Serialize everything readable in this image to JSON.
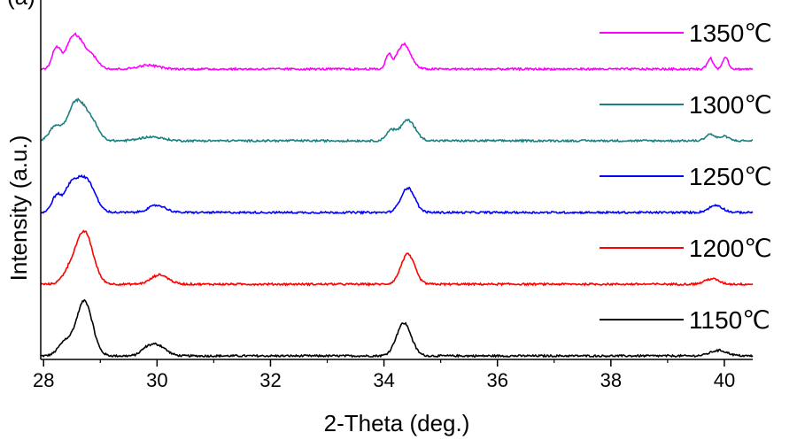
{
  "chart_data": {
    "type": "line",
    "panel_label": "(a)",
    "xlabel": "2-Theta (deg.)",
    "ylabel": "Intensity (a.u.)",
    "xlim": [
      27.95,
      40.5
    ],
    "xticks": [
      28,
      30,
      32,
      34,
      36,
      38,
      40
    ],
    "x_tick_labels": [
      "28",
      "30",
      "32",
      "34",
      "36",
      "38",
      "40"
    ],
    "y_ticks_shown": false,
    "grid": false,
    "legend_placement": "right, one label beside each trace",
    "series": [
      {
        "name": "1150℃",
        "color": "#000000",
        "offset": 0,
        "peaks": [
          [
            28.72,
            1.0,
            0.14
          ],
          [
            28.38,
            0.25,
            0.12
          ],
          [
            30.0,
            0.2,
            0.15
          ],
          [
            29.8,
            0.08,
            0.1
          ],
          [
            34.35,
            0.6,
            0.13
          ],
          [
            39.9,
            0.1,
            0.15
          ]
        ]
      },
      {
        "name": "1200℃",
        "color": "#ff0000",
        "offset": 1,
        "peaks": [
          [
            28.72,
            0.95,
            0.15
          ],
          [
            28.45,
            0.2,
            0.12
          ],
          [
            30.05,
            0.17,
            0.15
          ],
          [
            34.42,
            0.55,
            0.12
          ],
          [
            39.78,
            0.1,
            0.12
          ]
        ]
      },
      {
        "name": "1250℃",
        "color": "#0000ff",
        "offset": 2,
        "peaks": [
          [
            28.75,
            0.6,
            0.15
          ],
          [
            28.48,
            0.45,
            0.12
          ],
          [
            28.22,
            0.28,
            0.08
          ],
          [
            30.0,
            0.13,
            0.15
          ],
          [
            34.42,
            0.45,
            0.12
          ],
          [
            39.85,
            0.13,
            0.12
          ]
        ]
      },
      {
        "name": "1300℃",
        "color": "#1a8080",
        "offset": 3,
        "peaks": [
          [
            28.58,
            0.72,
            0.15
          ],
          [
            28.2,
            0.25,
            0.1
          ],
          [
            28.85,
            0.3,
            0.12
          ],
          [
            29.9,
            0.07,
            0.2
          ],
          [
            34.42,
            0.38,
            0.13
          ],
          [
            34.12,
            0.18,
            0.08
          ],
          [
            39.75,
            0.12,
            0.08
          ],
          [
            40.0,
            0.08,
            0.08
          ]
        ]
      },
      {
        "name": "1350℃",
        "color": "#ff00ff",
        "offset": 4,
        "peaks": [
          [
            28.55,
            0.62,
            0.15
          ],
          [
            28.22,
            0.35,
            0.07
          ],
          [
            28.85,
            0.2,
            0.12
          ],
          [
            29.85,
            0.07,
            0.18
          ],
          [
            34.35,
            0.45,
            0.12
          ],
          [
            34.08,
            0.25,
            0.05
          ],
          [
            39.75,
            0.2,
            0.05
          ],
          [
            40.02,
            0.22,
            0.05
          ]
        ]
      }
    ]
  }
}
